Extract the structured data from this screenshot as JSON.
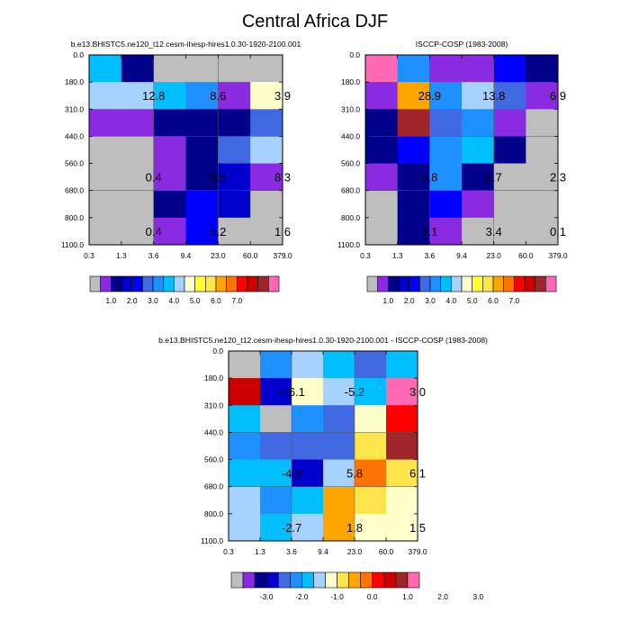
{
  "title": "Central Africa DJF",
  "palettes": {
    "model": [
      "#BEBEBE",
      "#8A2BE2",
      "#00008B",
      "#0000CD",
      "#0000FF",
      "#4169E1",
      "#1E90FF",
      "#00BFFF",
      "#A6D2FF",
      "#FFFFCC",
      "#FFFF33",
      "#FFE54C",
      "#FFA500",
      "#FF7300",
      "#FF0000",
      "#CC0000",
      "#A0252A",
      "#FF69B4"
    ],
    "diff": [
      "#BEBEBE",
      "#8A2BE2",
      "#00008B",
      "#0000CD",
      "#4169E1",
      "#1E90FF",
      "#00BFFF",
      "#A6D2FF",
      "#FFFFCC",
      "#FFE54C",
      "#FFA500",
      "#FF7300",
      "#FF0000",
      "#CC0000",
      "#A0252A",
      "#FF69B4"
    ]
  },
  "chart_data": [
    {
      "type": "heatmap",
      "id": "model",
      "title": "b.e13.BHISTC5.ne120_t12.cesm-ihesp-hires1.0.30-1920-2100.001",
      "x_ticks": [
        "0.3",
        "1.3",
        "3.6",
        "9.4",
        "23.0",
        "60.0",
        "379.0"
      ],
      "y_ticks": [
        "0.0",
        "180.0",
        "310.0",
        "440.0",
        "560.0",
        "680.0",
        "800.0",
        "1100.0"
      ],
      "palette": "model",
      "grid": [
        [
          7,
          2,
          0,
          0,
          0,
          0
        ],
        [
          8,
          8,
          7,
          6,
          1,
          9
        ],
        [
          1,
          1,
          2,
          2,
          2,
          5
        ],
        [
          0,
          0,
          1,
          2,
          5,
          8
        ],
        [
          0,
          0,
          1,
          2,
          3,
          1
        ],
        [
          0,
          0,
          2,
          4,
          3,
          0
        ],
        [
          0,
          0,
          1,
          4,
          0,
          0
        ]
      ],
      "labels": [
        {
          "text": "12.8",
          "col": 1,
          "row": 1
        },
        {
          "text": "8.6",
          "col": 3,
          "row": 1
        },
        {
          "text": "3.9",
          "col": 5,
          "row": 1
        },
        {
          "text": "0.4",
          "col": 1,
          "row": 4
        },
        {
          "text": "3.8",
          "col": 3,
          "row": 4
        },
        {
          "text": "8.3",
          "col": 5,
          "row": 4
        },
        {
          "text": "0.4",
          "col": 1,
          "row": 6
        },
        {
          "text": "5.2",
          "col": 3,
          "row": 6
        },
        {
          "text": "1.6",
          "col": 5,
          "row": 6
        }
      ],
      "colorbar_labels": [
        "1.0",
        "2.0",
        "3.0",
        "4.0",
        "5.0",
        "6.0",
        "7.0"
      ]
    },
    {
      "type": "heatmap",
      "id": "obs",
      "title": "ISCCP-COSP (1983-2008)",
      "x_ticks": [
        "0.3",
        "1.3",
        "3.6",
        "9.4",
        "23.0",
        "60.0",
        "379.0"
      ],
      "y_ticks": [
        "0.0",
        "180.0",
        "310.0",
        "440.0",
        "560.0",
        "680.0",
        "800.0",
        "1100.0"
      ],
      "palette": "model",
      "grid": [
        [
          17,
          6,
          1,
          1,
          4,
          2
        ],
        [
          1,
          12,
          6,
          8,
          5,
          1
        ],
        [
          2,
          16,
          5,
          6,
          1,
          0
        ],
        [
          2,
          4,
          6,
          7,
          2,
          0
        ],
        [
          1,
          2,
          6,
          2,
          0,
          0
        ],
        [
          0,
          2,
          4,
          1,
          0,
          0
        ],
        [
          0,
          2,
          1,
          0,
          0,
          0
        ]
      ],
      "labels": [
        {
          "text": "28.9",
          "col": 1,
          "row": 1
        },
        {
          "text": "13.8",
          "col": 3,
          "row": 1
        },
        {
          "text": "6.9",
          "col": 5,
          "row": 1
        },
        {
          "text": "4.8",
          "col": 1,
          "row": 4
        },
        {
          "text": "9.7",
          "col": 3,
          "row": 4
        },
        {
          "text": "2.3",
          "col": 5,
          "row": 4
        },
        {
          "text": "3.1",
          "col": 1,
          "row": 6
        },
        {
          "text": "3.4",
          "col": 3,
          "row": 6
        },
        {
          "text": "0.1",
          "col": 5,
          "row": 6
        }
      ],
      "colorbar_labels": [
        "1.0",
        "2.0",
        "3.0",
        "4.0",
        "5.0",
        "6.0",
        "7.0"
      ]
    },
    {
      "type": "heatmap",
      "id": "diff",
      "title": "b.e13.BHISTC5.ne120_t12.cesm-ihesp-hires1.0.30-1920-2100.001 - ISCCP-COSP (1983-2008)",
      "x_ticks": [
        "0.3",
        "1.3",
        "3.6",
        "9.4",
        "23.0",
        "60.0",
        "379.0"
      ],
      "y_ticks": [
        "0.0",
        "180.0",
        "310.0",
        "440.0",
        "560.0",
        "680.0",
        "800.0",
        "1100.0"
      ],
      "palette": "diff",
      "grid": [
        [
          0,
          5,
          7,
          6,
          4,
          6
        ],
        [
          13,
          3,
          8,
          7,
          6,
          15
        ],
        [
          6,
          0,
          5,
          4,
          8,
          12
        ],
        [
          5,
          4,
          4,
          4,
          9,
          14
        ],
        [
          6,
          6,
          3,
          7,
          11,
          9
        ],
        [
          7,
          5,
          6,
          10,
          9,
          8
        ],
        [
          7,
          6,
          7,
          10,
          8,
          8
        ]
      ],
      "labels": [
        {
          "text": "-16.1",
          "col": 1,
          "row": 1
        },
        {
          "text": "-5.2",
          "col": 3,
          "row": 1
        },
        {
          "text": "3.0",
          "col": 5,
          "row": 1
        },
        {
          "text": "-4.4",
          "col": 1,
          "row": 4
        },
        {
          "text": "5.8",
          "col": 3,
          "row": 4
        },
        {
          "text": "6.1",
          "col": 5,
          "row": 4
        },
        {
          "text": "-2.7",
          "col": 1,
          "row": 6
        },
        {
          "text": "1.8",
          "col": 3,
          "row": 6
        },
        {
          "text": "1.5",
          "col": 5,
          "row": 6
        }
      ],
      "colorbar_labels": [
        "-3.0",
        "-2.0",
        "-1.0",
        "0.0",
        "1.0",
        "2.0",
        "3.0"
      ]
    }
  ]
}
